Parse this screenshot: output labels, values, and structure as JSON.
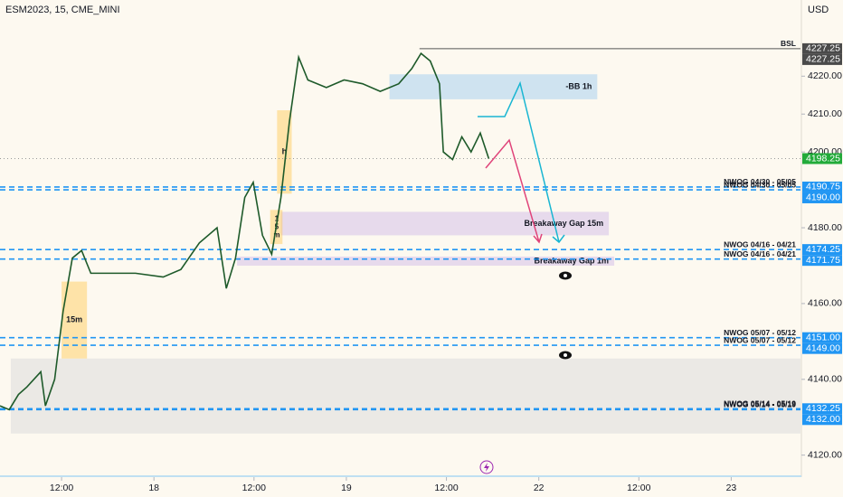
{
  "chart_data": {
    "type": "line",
    "title": "ESM2023, 15, CME_MINI",
    "currency": "USD",
    "color": "#1e5a2a",
    "x": [
      4.0,
      5.2,
      6.4,
      7.5,
      9.3,
      9.9,
      11.1,
      12.2,
      13.4,
      14.6,
      15.8,
      18.1,
      21.6,
      25.2,
      27.5,
      29.9,
      32.2,
      33.4,
      34.6,
      35.8,
      36.9,
      38.1,
      39.3,
      40.5,
      41.6,
      42.8,
      44.0,
      46.4,
      48.7,
      51.1,
      53.4,
      55.8,
      57.5,
      58.7,
      59.9,
      61.1,
      61.6,
      62.8,
      64.0,
      65.2,
      66.4,
      67.5
    ],
    "values": [
      4133,
      4132,
      4136,
      4138,
      4142,
      4133,
      4140,
      4158,
      4172,
      4174,
      4168,
      4168,
      4168,
      4167,
      4169,
      4176,
      4180,
      4164,
      4172,
      4188,
      4192,
      4178,
      4173,
      4188,
      4208,
      4225,
      4219,
      4217,
      4219,
      4218,
      4216,
      4218,
      4222,
      4226,
      4224,
      4218,
      4200,
      4198,
      4204,
      4200,
      4205,
      4198.25
    ],
    "xlim": [
      4,
      108
    ],
    "ylim": [
      4114.2,
      4240.1
    ],
    "xticks": [
      {
        "value": 12,
        "label": "12:00"
      },
      {
        "value": 24,
        "label": "18"
      },
      {
        "value": 37,
        "label": "12:00"
      },
      {
        "value": 49,
        "label": "19"
      },
      {
        "value": 62,
        "label": "12:00"
      },
      {
        "value": 74,
        "label": "22"
      },
      {
        "value": 87,
        "label": "12:00"
      },
      {
        "value": 99,
        "label": "23"
      }
    ],
    "yticks": [
      {
        "value": 4120,
        "label": "4120.00"
      },
      {
        "value": 4140,
        "label": "4140.00"
      },
      {
        "value": 4160,
        "label": "4160.00"
      },
      {
        "value": 4180,
        "label": "4180.00"
      },
      {
        "value": 4200,
        "label": "4200.00"
      },
      {
        "value": 4210,
        "label": "4210.00"
      },
      {
        "value": 4220,
        "label": "4220.00"
      }
    ],
    "levels": [
      {
        "value": 4190.75,
        "label": "NWOG 04/30 - 05/05"
      },
      {
        "value": 4190.0,
        "label": "NWOG 04/30 - 05/05"
      },
      {
        "value": 4174.25,
        "label": "NWOG 04/16 - 04/21"
      },
      {
        "value": 4171.75,
        "label": "NWOG 04/16 - 04/21"
      },
      {
        "value": 4151.0,
        "label": "NWOG 05/07 - 05/12"
      },
      {
        "value": 4149.0,
        "label": "NWOG 05/07 - 05/12"
      },
      {
        "value": 4132.25,
        "label": "NWOG 05/14 - 05/19"
      },
      {
        "value": 4132.0,
        "label": "NWOG 05/14 - 05/19"
      }
    ],
    "bsl": {
      "value": 4227.25,
      "start": 58.5,
      "label": "BSL"
    },
    "zones": [
      {
        "x": [
          5.4,
          108
        ],
        "y": [
          4125.7,
          4145.5
        ],
        "color": "rgba(220,220,220,0.55)"
      },
      {
        "x": [
          54.6,
          81.6
        ],
        "y": [
          4213.9,
          4220.5
        ],
        "color": "rgba(120,185,240,0.35)",
        "label": "-BB 1h"
      },
      {
        "x": [
          40.5,
          83.1
        ],
        "y": [
          4178.0,
          4184.2
        ],
        "color": "rgba(190,160,230,0.35)",
        "label": "Breakaway Gap 15m"
      },
      {
        "x": [
          34.8,
          83.8
        ],
        "y": [
          4170.0,
          4172.4
        ],
        "color": "rgba(190,160,230,0.35)",
        "label": "Breakaway Gap 1m"
      },
      {
        "x": [
          12.0,
          15.3
        ],
        "y": [
          4145.5,
          4165.8
        ],
        "color": "rgba(255,200,80,0.45)",
        "label": "15m"
      },
      {
        "x": [
          40.0,
          41.9
        ],
        "y": [
          4189.0,
          4211.0
        ],
        "color": "rgba(255,200,80,0.45)",
        "label": "h"
      },
      {
        "x": [
          39.1,
          40.7
        ],
        "y": [
          4175.7,
          4184.7
        ],
        "color": "rgba(255,200,80,0.45)",
        "label": "15m"
      }
    ],
    "price_labels": [
      {
        "value": 4227.25,
        "label": "4227.25",
        "color": "#4a4a4a"
      },
      {
        "value": 4227.25,
        "label": "4227.25",
        "color": "#4a4a4a"
      },
      {
        "value": 4198.25,
        "label": "4198.25",
        "color": "#22ab3a"
      },
      {
        "value": 4190.75,
        "label": "4190.75",
        "color": "#2196f3"
      },
      {
        "value": 4190.0,
        "label": "4190.00",
        "color": "#2196f3"
      },
      {
        "value": 4174.25,
        "label": "4174.25",
        "color": "#2196f3"
      },
      {
        "value": 4171.75,
        "label": "4171.75",
        "color": "#2196f3"
      },
      {
        "value": 4151.0,
        "label": "4151.00",
        "color": "#2196f3"
      },
      {
        "value": 4149.0,
        "label": "4149.00",
        "color": "#2196f3"
      },
      {
        "value": 4132.25,
        "label": "4132.25",
        "color": "#2196f3"
      },
      {
        "value": 4132.0,
        "label": "4132.00",
        "color": "#2196f3"
      }
    ]
  }
}
